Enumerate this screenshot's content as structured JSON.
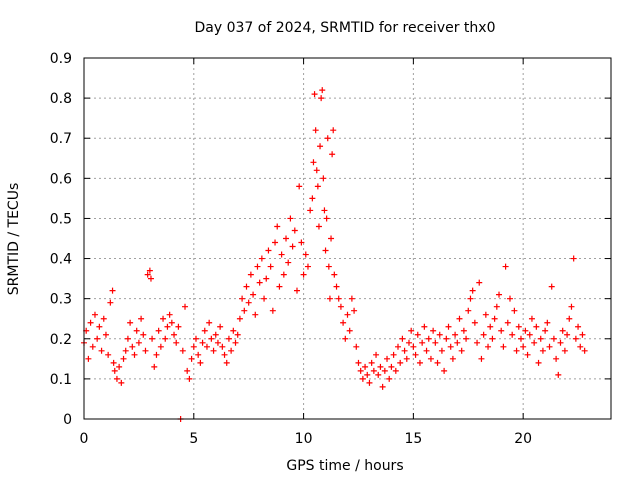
{
  "chart_data": {
    "type": "scatter",
    "title": "Day 037 of 2024, SRMTID for receiver thx0",
    "xlabel": "GPS time / hours",
    "ylabel": "SRMTID / TECUs",
    "xlim": [
      0,
      24
    ],
    "ylim": [
      0,
      0.9
    ],
    "xticks": [
      0,
      5,
      10,
      15,
      20
    ],
    "xtick_labels": [
      "0",
      "5",
      "10",
      "15",
      "20"
    ],
    "yticks": [
      0,
      0.1,
      0.2,
      0.3,
      0.4,
      0.5,
      0.6,
      0.7,
      0.8,
      0.9
    ],
    "ytick_labels": [
      "0",
      "0.1",
      "0.2",
      "0.3",
      "0.4",
      "0.5",
      "0.6",
      "0.7",
      "0.8",
      "0.9"
    ],
    "grid": true,
    "marker": "+",
    "color": "#ff0000",
    "series": [
      {
        "name": "SRMTID",
        "points": [
          [
            0.0,
            0.19
          ],
          [
            0.1,
            0.22
          ],
          [
            0.2,
            0.15
          ],
          [
            0.3,
            0.24
          ],
          [
            0.4,
            0.18
          ],
          [
            0.5,
            0.26
          ],
          [
            0.6,
            0.2
          ],
          [
            0.7,
            0.23
          ],
          [
            0.8,
            0.17
          ],
          [
            0.9,
            0.25
          ],
          [
            1.0,
            0.21
          ],
          [
            1.1,
            0.16
          ],
          [
            1.2,
            0.29
          ],
          [
            1.3,
            0.32
          ],
          [
            1.35,
            0.14
          ],
          [
            1.4,
            0.12
          ],
          [
            1.5,
            0.1
          ],
          [
            1.6,
            0.13
          ],
          [
            1.7,
            0.09
          ],
          [
            1.8,
            0.15
          ],
          [
            1.9,
            0.17
          ],
          [
            2.0,
            0.2
          ],
          [
            2.1,
            0.24
          ],
          [
            2.2,
            0.18
          ],
          [
            2.3,
            0.16
          ],
          [
            2.4,
            0.22
          ],
          [
            2.5,
            0.19
          ],
          [
            2.6,
            0.25
          ],
          [
            2.7,
            0.21
          ],
          [
            2.8,
            0.17
          ],
          [
            2.9,
            0.36
          ],
          [
            3.0,
            0.37
          ],
          [
            3.05,
            0.35
          ],
          [
            3.1,
            0.2
          ],
          [
            3.2,
            0.13
          ],
          [
            3.3,
            0.16
          ],
          [
            3.4,
            0.22
          ],
          [
            3.5,
            0.18
          ],
          [
            3.6,
            0.25
          ],
          [
            3.7,
            0.2
          ],
          [
            3.8,
            0.23
          ],
          [
            3.9,
            0.26
          ],
          [
            4.0,
            0.24
          ],
          [
            4.1,
            0.21
          ],
          [
            4.2,
            0.19
          ],
          [
            4.3,
            0.23
          ],
          [
            4.4,
            0.0
          ],
          [
            4.5,
            0.17
          ],
          [
            4.6,
            0.28
          ],
          [
            4.7,
            0.12
          ],
          [
            4.8,
            0.1
          ],
          [
            4.9,
            0.15
          ],
          [
            5.0,
            0.18
          ],
          [
            5.1,
            0.2
          ],
          [
            5.2,
            0.16
          ],
          [
            5.3,
            0.14
          ],
          [
            5.4,
            0.19
          ],
          [
            5.5,
            0.22
          ],
          [
            5.6,
            0.18
          ],
          [
            5.7,
            0.24
          ],
          [
            5.8,
            0.2
          ],
          [
            5.9,
            0.17
          ],
          [
            6.0,
            0.21
          ],
          [
            6.1,
            0.19
          ],
          [
            6.2,
            0.23
          ],
          [
            6.3,
            0.18
          ],
          [
            6.4,
            0.16
          ],
          [
            6.5,
            0.14
          ],
          [
            6.6,
            0.2
          ],
          [
            6.7,
            0.17
          ],
          [
            6.8,
            0.22
          ],
          [
            6.9,
            0.19
          ],
          [
            7.0,
            0.21
          ],
          [
            7.1,
            0.25
          ],
          [
            7.2,
            0.3
          ],
          [
            7.3,
            0.27
          ],
          [
            7.4,
            0.33
          ],
          [
            7.5,
            0.29
          ],
          [
            7.6,
            0.36
          ],
          [
            7.7,
            0.31
          ],
          [
            7.8,
            0.26
          ],
          [
            7.9,
            0.38
          ],
          [
            8.0,
            0.34
          ],
          [
            8.1,
            0.4
          ],
          [
            8.2,
            0.3
          ],
          [
            8.3,
            0.35
          ],
          [
            8.4,
            0.42
          ],
          [
            8.5,
            0.38
          ],
          [
            8.6,
            0.27
          ],
          [
            8.7,
            0.44
          ],
          [
            8.8,
            0.48
          ],
          [
            8.9,
            0.33
          ],
          [
            9.0,
            0.41
          ],
          [
            9.1,
            0.36
          ],
          [
            9.2,
            0.45
          ],
          [
            9.3,
            0.39
          ],
          [
            9.4,
            0.5
          ],
          [
            9.5,
            0.43
          ],
          [
            9.6,
            0.47
          ],
          [
            9.7,
            0.32
          ],
          [
            9.8,
            0.58
          ],
          [
            9.9,
            0.44
          ],
          [
            10.0,
            0.36
          ],
          [
            10.1,
            0.41
          ],
          [
            10.2,
            0.38
          ],
          [
            10.3,
            0.52
          ],
          [
            10.4,
            0.55
          ],
          [
            10.45,
            0.64
          ],
          [
            10.5,
            0.81
          ],
          [
            10.55,
            0.72
          ],
          [
            10.6,
            0.62
          ],
          [
            10.65,
            0.58
          ],
          [
            10.7,
            0.48
          ],
          [
            10.75,
            0.68
          ],
          [
            10.8,
            0.8
          ],
          [
            10.85,
            0.82
          ],
          [
            10.9,
            0.6
          ],
          [
            10.95,
            0.52
          ],
          [
            11.0,
            0.42
          ],
          [
            11.05,
            0.5
          ],
          [
            11.1,
            0.7
          ],
          [
            11.15,
            0.38
          ],
          [
            11.2,
            0.3
          ],
          [
            11.25,
            0.45
          ],
          [
            11.3,
            0.66
          ],
          [
            11.35,
            0.72
          ],
          [
            11.4,
            0.36
          ],
          [
            11.5,
            0.33
          ],
          [
            11.6,
            0.3
          ],
          [
            11.7,
            0.28
          ],
          [
            11.8,
            0.24
          ],
          [
            11.9,
            0.2
          ],
          [
            12.0,
            0.26
          ],
          [
            12.1,
            0.22
          ],
          [
            12.2,
            0.3
          ],
          [
            12.3,
            0.27
          ],
          [
            12.4,
            0.18
          ],
          [
            12.5,
            0.14
          ],
          [
            12.6,
            0.12
          ],
          [
            12.7,
            0.1
          ],
          [
            12.8,
            0.13
          ],
          [
            12.9,
            0.11
          ],
          [
            13.0,
            0.09
          ],
          [
            13.1,
            0.14
          ],
          [
            13.2,
            0.12
          ],
          [
            13.3,
            0.16
          ],
          [
            13.4,
            0.11
          ],
          [
            13.5,
            0.13
          ],
          [
            13.6,
            0.08
          ],
          [
            13.7,
            0.12
          ],
          [
            13.8,
            0.15
          ],
          [
            13.9,
            0.1
          ],
          [
            14.0,
            0.13
          ],
          [
            14.1,
            0.16
          ],
          [
            14.2,
            0.12
          ],
          [
            14.3,
            0.18
          ],
          [
            14.4,
            0.14
          ],
          [
            14.5,
            0.2
          ],
          [
            14.6,
            0.17
          ],
          [
            14.7,
            0.15
          ],
          [
            14.8,
            0.19
          ],
          [
            14.9,
            0.22
          ],
          [
            15.0,
            0.18
          ],
          [
            15.1,
            0.16
          ],
          [
            15.2,
            0.21
          ],
          [
            15.3,
            0.14
          ],
          [
            15.4,
            0.19
          ],
          [
            15.5,
            0.23
          ],
          [
            15.6,
            0.17
          ],
          [
            15.7,
            0.2
          ],
          [
            15.8,
            0.15
          ],
          [
            15.9,
            0.22
          ],
          [
            16.0,
            0.19
          ],
          [
            16.1,
            0.14
          ],
          [
            16.2,
            0.21
          ],
          [
            16.3,
            0.17
          ],
          [
            16.4,
            0.12
          ],
          [
            16.5,
            0.2
          ],
          [
            16.6,
            0.23
          ],
          [
            16.7,
            0.18
          ],
          [
            16.8,
            0.15
          ],
          [
            16.9,
            0.21
          ],
          [
            17.0,
            0.19
          ],
          [
            17.1,
            0.25
          ],
          [
            17.2,
            0.17
          ],
          [
            17.3,
            0.22
          ],
          [
            17.4,
            0.2
          ],
          [
            17.5,
            0.27
          ],
          [
            17.6,
            0.3
          ],
          [
            17.7,
            0.32
          ],
          [
            17.8,
            0.24
          ],
          [
            17.9,
            0.19
          ],
          [
            18.0,
            0.34
          ],
          [
            18.1,
            0.15
          ],
          [
            18.2,
            0.21
          ],
          [
            18.3,
            0.26
          ],
          [
            18.4,
            0.18
          ],
          [
            18.5,
            0.23
          ],
          [
            18.6,
            0.2
          ],
          [
            18.7,
            0.25
          ],
          [
            18.8,
            0.28
          ],
          [
            18.9,
            0.31
          ],
          [
            19.0,
            0.22
          ],
          [
            19.1,
            0.18
          ],
          [
            19.2,
            0.38
          ],
          [
            19.3,
            0.24
          ],
          [
            19.4,
            0.3
          ],
          [
            19.5,
            0.21
          ],
          [
            19.6,
            0.27
          ],
          [
            19.7,
            0.17
          ],
          [
            19.8,
            0.23
          ],
          [
            19.9,
            0.2
          ],
          [
            20.0,
            0.18
          ],
          [
            20.1,
            0.22
          ],
          [
            20.2,
            0.16
          ],
          [
            20.3,
            0.21
          ],
          [
            20.4,
            0.25
          ],
          [
            20.5,
            0.19
          ],
          [
            20.6,
            0.23
          ],
          [
            20.7,
            0.14
          ],
          [
            20.8,
            0.2
          ],
          [
            20.9,
            0.17
          ],
          [
            21.0,
            0.22
          ],
          [
            21.1,
            0.24
          ],
          [
            21.2,
            0.18
          ],
          [
            21.3,
            0.33
          ],
          [
            21.4,
            0.2
          ],
          [
            21.5,
            0.15
          ],
          [
            21.6,
            0.11
          ],
          [
            21.7,
            0.19
          ],
          [
            21.8,
            0.22
          ],
          [
            21.9,
            0.17
          ],
          [
            22.0,
            0.21
          ],
          [
            22.1,
            0.25
          ],
          [
            22.2,
            0.28
          ],
          [
            22.3,
            0.4
          ],
          [
            22.4,
            0.2
          ],
          [
            22.5,
            0.23
          ],
          [
            22.6,
            0.18
          ],
          [
            22.7,
            0.21
          ],
          [
            22.8,
            0.17
          ]
        ]
      }
    ]
  }
}
